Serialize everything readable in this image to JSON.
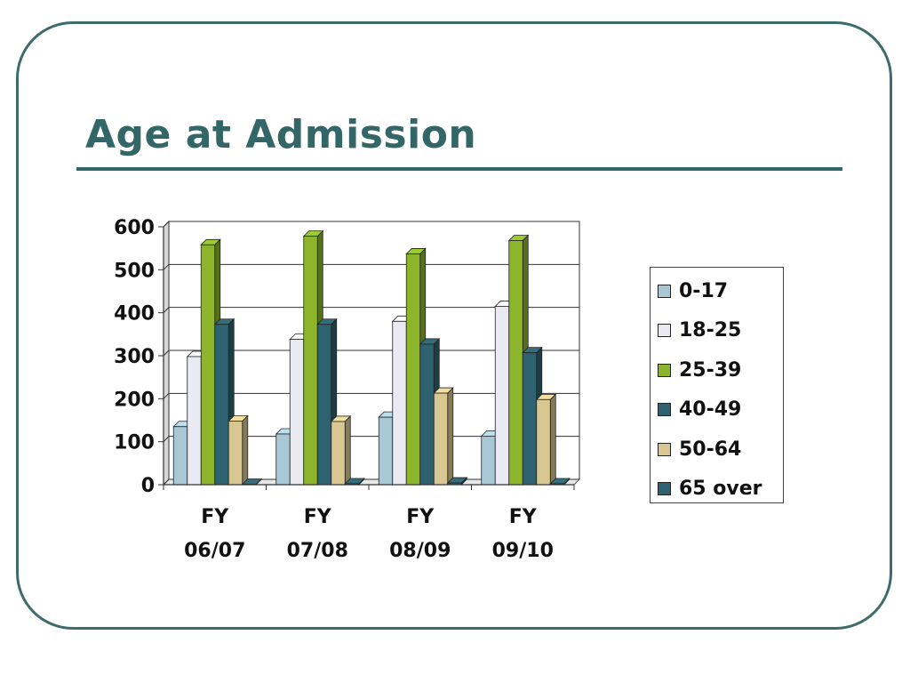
{
  "slide": {
    "title": "Age at Admission"
  },
  "chart_data": {
    "type": "bar",
    "title": "",
    "xlabel": "",
    "ylabel": "",
    "ylim": [
      0,
      600
    ],
    "yticks": [
      0,
      100,
      200,
      300,
      400,
      500,
      600
    ],
    "categories": [
      [
        "FY",
        "06/07"
      ],
      [
        "FY",
        "07/08"
      ],
      [
        "FY",
        "08/09"
      ],
      [
        "FY",
        "09/10"
      ]
    ],
    "series": [
      {
        "name": "0-17",
        "color": "#a9c8d6",
        "values": [
          135,
          118,
          157,
          113
        ]
      },
      {
        "name": "18-25",
        "color": "#e9eaf2",
        "values": [
          298,
          338,
          380,
          415
        ]
      },
      {
        "name": "25-39",
        "color": "#8db52c",
        "values": [
          558,
          578,
          537,
          568
        ]
      },
      {
        "name": "40-49",
        "color": "#2e6270",
        "values": [
          373,
          373,
          327,
          307
        ]
      },
      {
        "name": "50-64",
        "color": "#d8c790",
        "values": [
          148,
          147,
          213,
          198
        ]
      },
      {
        "name": "65 over",
        "color": "#2e6270",
        "values": [
          1,
          2,
          4,
          2
        ]
      }
    ],
    "grid": true,
    "legend_position": "right",
    "style": "3d-clustered-column"
  }
}
